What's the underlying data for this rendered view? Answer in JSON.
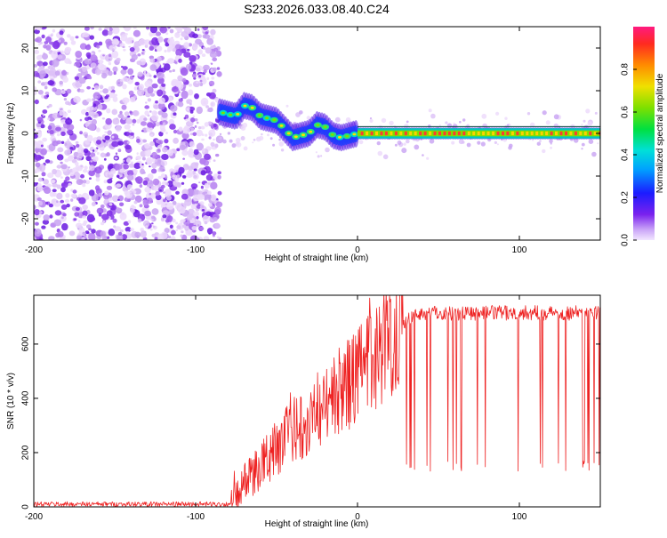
{
  "title": "S233.2026.033.08.40.C24",
  "chart_data": [
    {
      "type": "heatmap",
      "xlabel": "Height of straight line (km)",
      "ylabel": "Frequency (Hz)",
      "xlim": [
        -200,
        150
      ],
      "ylim": [
        -25,
        25
      ],
      "xticks": [
        -200,
        -100,
        0,
        100
      ],
      "yticks": [
        -20,
        -10,
        0,
        10,
        20
      ],
      "colorbar": {
        "label": "Normalized spectral amplitude",
        "range": [
          0,
          1
        ],
        "ticks": [
          "0.0",
          "0.2",
          "0.4",
          "0.6",
          "0.8"
        ],
        "tick_values": [
          0.0,
          0.2,
          0.4,
          0.6,
          0.8
        ]
      },
      "noise_region": {
        "x": [
          -200,
          -85
        ],
        "y": [
          -25,
          25
        ]
      },
      "ridge": [
        {
          "x": -85,
          "y": 5
        },
        {
          "x": -80,
          "y": 4.5
        },
        {
          "x": -75,
          "y": 4
        },
        {
          "x": -70,
          "y": 6.5
        },
        {
          "x": -65,
          "y": 6
        },
        {
          "x": -60,
          "y": 4
        },
        {
          "x": -55,
          "y": 3.5
        },
        {
          "x": -50,
          "y": 3
        },
        {
          "x": -45,
          "y": 1
        },
        {
          "x": -40,
          "y": -1
        },
        {
          "x": -35,
          "y": -0.5
        },
        {
          "x": -30,
          "y": 0
        },
        {
          "x": -25,
          "y": 2
        },
        {
          "x": -20,
          "y": 1.5
        },
        {
          "x": -15,
          "y": -0.5
        },
        {
          "x": -10,
          "y": -1
        },
        {
          "x": -5,
          "y": -0.5
        },
        {
          "x": 0,
          "y": 0
        },
        {
          "x": 150,
          "y": 0
        }
      ]
    },
    {
      "type": "line",
      "xlabel": "Height of straight line (km)",
      "ylabel": "SNR (10 * v/v)",
      "xlim": [
        -200,
        150
      ],
      "ylim": [
        0,
        780
      ],
      "xticks": [
        -200,
        -100,
        0,
        100
      ],
      "yticks": [
        0,
        200,
        400,
        600
      ],
      "color": "#ee2222",
      "envelope": [
        {
          "x": -200,
          "y": 10
        },
        {
          "x": -80,
          "y": 10
        },
        {
          "x": -75,
          "y": 30
        },
        {
          "x": -70,
          "y": 90
        },
        {
          "x": -60,
          "y": 150
        },
        {
          "x": -50,
          "y": 220
        },
        {
          "x": -40,
          "y": 280
        },
        {
          "x": -30,
          "y": 330
        },
        {
          "x": -20,
          "y": 380
        },
        {
          "x": -10,
          "y": 430
        },
        {
          "x": 0,
          "y": 480
        },
        {
          "x": 10,
          "y": 550
        },
        {
          "x": 20,
          "y": 620
        },
        {
          "x": 30,
          "y": 690
        },
        {
          "x": 40,
          "y": 715
        },
        {
          "x": 150,
          "y": 715
        }
      ]
    }
  ]
}
